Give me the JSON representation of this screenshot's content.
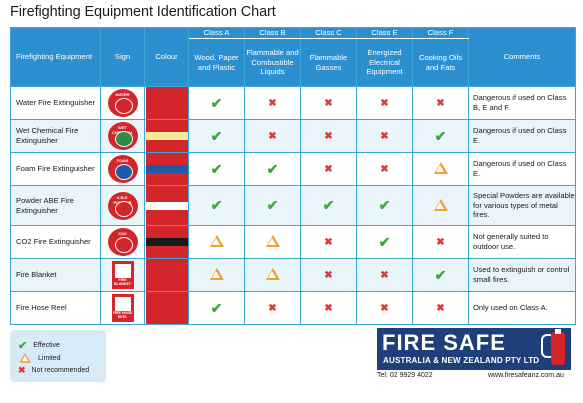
{
  "title": "Firefighting Equipment Identification Chart",
  "headers": {
    "equipment": "Firefighting Equipment",
    "sign": "Sign",
    "colour": "Colour",
    "comments": "Comments",
    "classes": [
      {
        "cls": "Class A",
        "desc": "Wood, Paper and Plastic"
      },
      {
        "cls": "Class B",
        "desc": "Flammable and Combustible Liquids"
      },
      {
        "cls": "Class C",
        "desc": "Flammable Gasses"
      },
      {
        "cls": "Class E",
        "desc": "Energized Electrical Equipment"
      },
      {
        "cls": "Class F",
        "desc": "Cooking Oils and Fats"
      }
    ]
  },
  "rows": [
    {
      "name": "Water Fire Extinguisher",
      "sign_icon": "water-extinguisher-sign-icon",
      "sign_colour": "#d3262b",
      "band_colour": "",
      "marks": [
        "ok",
        "no",
        "no",
        "no",
        "no"
      ],
      "comment": "Dangerous if used on Class B, E and F."
    },
    {
      "name": "Wet Chemical Fire Extinguisher",
      "sign_icon": "wet-chemical-extinguisher-sign-icon",
      "sign_colour": "#2e8b4a",
      "band_colour": "#f6e99a",
      "marks": [
        "ok",
        "no",
        "no",
        "no",
        "ok"
      ],
      "comment": "Dangerous if used on Class E."
    },
    {
      "name": "Foam Fire Extinguisher",
      "sign_icon": "foam-extinguisher-sign-icon",
      "sign_colour": "#1f5aa6",
      "band_colour": "#1f5aa6",
      "marks": [
        "ok",
        "ok",
        "no",
        "no",
        "lim"
      ],
      "comment": "Dangerous if used on Class E."
    },
    {
      "name": "Powder ABE Fire Extinguisher",
      "sign_icon": "powder-extinguisher-sign-icon",
      "sign_colour": "#d3262b",
      "band_colour": "#ffffff",
      "marks": [
        "ok",
        "ok",
        "ok",
        "ok",
        "lim"
      ],
      "comment": "Special Powders are available for various types of metal fires."
    },
    {
      "name": "CO2 Fire Extinguisher",
      "sign_icon": "co2-extinguisher-sign-icon",
      "sign_colour": "#d3262b",
      "band_colour": "#1a1a1a",
      "marks": [
        "lim",
        "lim",
        "no",
        "ok",
        "no"
      ],
      "comment": "Not generally suited to outdoor use."
    },
    {
      "name": "Fire Blanket",
      "sign_icon": "fire-blanket-sign-icon",
      "sign_colour": "#d3262b",
      "band_colour": "",
      "marks": [
        "lim",
        "lim",
        "no",
        "no",
        "ok"
      ],
      "comment": "Used to extinguish or control small fires."
    },
    {
      "name": "Fire Hose Reel",
      "sign_icon": "fire-hose-reel-sign-icon",
      "sign_colour": "#d3262b",
      "band_colour": "",
      "marks": [
        "ok",
        "no",
        "no",
        "no",
        "no"
      ],
      "comment": "Only used on Class A."
    }
  ],
  "sign_texts": [
    "WATER",
    "WET CHEMICAL",
    "FOAM",
    "A.B.E. POWDER",
    "CO2",
    "FIRE BLANKET",
    "FIRE HOSE REEL"
  ],
  "legend": {
    "effective": "Effective",
    "limited": "Limited",
    "not_recommended": "Not recommended"
  },
  "logo": {
    "line1": "FIRE SAFE",
    "line2": "AUSTRALIA & NEW ZEALAND PTY LTD"
  },
  "contact": {
    "tel": "Tel: 02 9929 4022",
    "web": "www.firesafeanz.com.au"
  },
  "colors": {
    "header_blue": "#2c8fcf",
    "border_blue": "#3aa6d6",
    "red": "#d3262b",
    "ok_green": "#3aa83a",
    "no_red": "#d93a3a",
    "limited_orange": "#f0a030",
    "logo_navy": "#1f3f7a"
  }
}
